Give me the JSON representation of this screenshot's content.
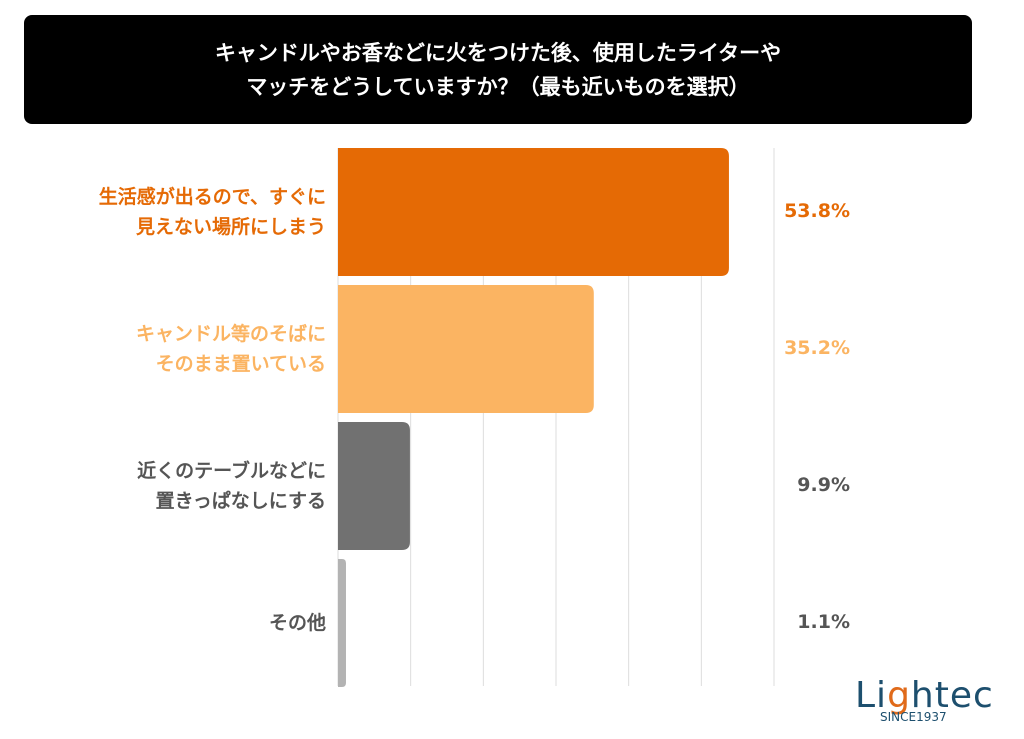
{
  "chart_data": {
    "type": "bar",
    "orientation": "horizontal",
    "title_lines": [
      "キャンドルやお香などに火をつけた後、使用したライターや",
      "マッチをどうしていますか？（最も近いものを選択）"
    ],
    "categories": [
      [
        "生活感が出るので、すぐに",
        "見えない場所にしまう"
      ],
      [
        "キャンドル等のそばに",
        "そのまま置いている"
      ],
      [
        "近くのテーブルなどに",
        "置きっぱなしにする"
      ],
      [
        "その他"
      ]
    ],
    "values": [
      53.8,
      35.2,
      9.9,
      1.1
    ],
    "value_labels": [
      "53.8%",
      "35.2%",
      "9.9%",
      "1.1%"
    ],
    "colors": [
      "#e56a05",
      "#fbb462",
      "#717171",
      "#b3b3b3"
    ],
    "label_colors": [
      "#e56a05",
      "#fbb462",
      "#555555",
      "#555555"
    ],
    "xlim": [
      0,
      60
    ],
    "grid": true
  },
  "logo": {
    "name": "Lightec",
    "tagline": "SINCE1937"
  }
}
